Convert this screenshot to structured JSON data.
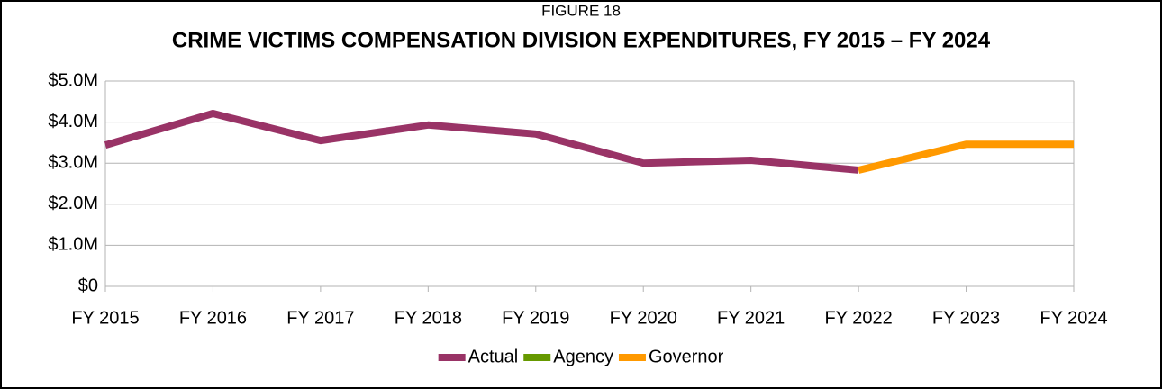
{
  "chart_data": {
    "type": "line",
    "subtitle": "FIGURE 18",
    "title": "CRIME VICTIMS COMPENSATION DIVISION EXPENDITURES, FY 2015 – FY 2024",
    "categories": [
      "FY 2015",
      "FY 2016",
      "FY 2017",
      "FY 2018",
      "FY 2019",
      "FY 2020",
      "FY 2021",
      "FY 2022",
      "FY 2023",
      "FY 2024"
    ],
    "series": [
      {
        "name": "Actual",
        "color": "#993366",
        "values": [
          3440000,
          4210000,
          3550000,
          3930000,
          3710000,
          3000000,
          3070000,
          2830000,
          null,
          null
        ]
      },
      {
        "name": "Agency",
        "color": "#669900",
        "values": [
          null,
          null,
          null,
          null,
          null,
          null,
          null,
          null,
          null,
          null
        ]
      },
      {
        "name": "Governor",
        "color": "#ff9900",
        "values": [
          null,
          null,
          null,
          null,
          null,
          null,
          null,
          2830000,
          3460000,
          3460000
        ]
      }
    ],
    "ylim": [
      0,
      5000000
    ],
    "yticks": [
      {
        "value": 0,
        "label": "$0"
      },
      {
        "value": 1000000,
        "label": "$1.0M"
      },
      {
        "value": 2000000,
        "label": "$2.0M"
      },
      {
        "value": 3000000,
        "label": "$3.0M"
      },
      {
        "value": 4000000,
        "label": "$4.0M"
      },
      {
        "value": 5000000,
        "label": "$5.0M"
      }
    ],
    "grid": true,
    "legend": "bottom"
  }
}
